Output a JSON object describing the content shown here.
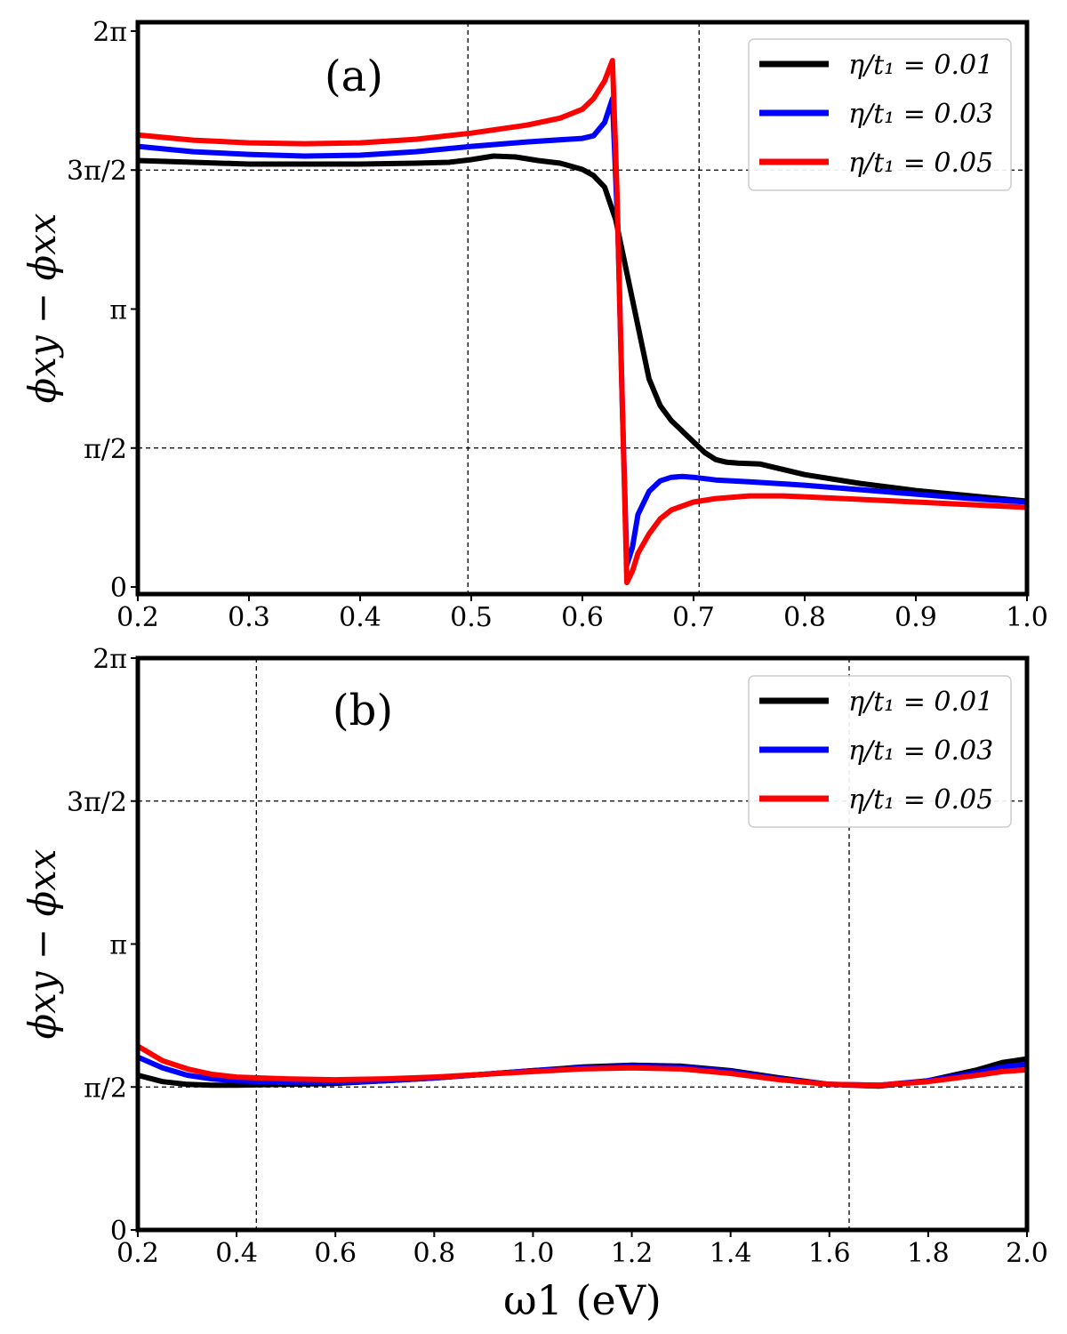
{
  "chart_data": [
    {
      "type": "line",
      "panel_label": "(a)",
      "xlabel": "",
      "ylabel": "ϕxy − ϕxx",
      "xlim": [
        0.2,
        1.0
      ],
      "ylim": [
        -0.08,
        6.3832
      ],
      "xticks": [
        0.2,
        0.3,
        0.4,
        0.5,
        0.6,
        0.7,
        0.8,
        0.9,
        1.0
      ],
      "xtick_labels": [
        "0.2",
        "0.3",
        "0.4",
        "0.5",
        "0.6",
        "0.7",
        "0.8",
        "0.9",
        "1.0"
      ],
      "yticks": [
        0,
        1.5708,
        3.1416,
        4.7124,
        6.2832
      ],
      "ytick_labels": [
        "0",
        "π/2",
        "π",
        "3π/2",
        "2π"
      ],
      "vlines": [
        0.497,
        0.705
      ],
      "hlines": [
        1.5708,
        4.7124
      ],
      "legend_position": "top-right",
      "series": [
        {
          "name": "η/t₁ = 0.01",
          "color": "#000000",
          "points": [
            [
              0.2,
              4.82
            ],
            [
              0.25,
              4.8
            ],
            [
              0.3,
              4.78
            ],
            [
              0.35,
              4.78
            ],
            [
              0.4,
              4.78
            ],
            [
              0.45,
              4.79
            ],
            [
              0.48,
              4.8
            ],
            [
              0.5,
              4.83
            ],
            [
              0.52,
              4.87
            ],
            [
              0.54,
              4.86
            ],
            [
              0.56,
              4.82
            ],
            [
              0.58,
              4.79
            ],
            [
              0.6,
              4.72
            ],
            [
              0.61,
              4.65
            ],
            [
              0.62,
              4.52
            ],
            [
              0.63,
              4.15
            ],
            [
              0.64,
              3.55
            ],
            [
              0.65,
              2.95
            ],
            [
              0.66,
              2.35
            ],
            [
              0.67,
              2.05
            ],
            [
              0.68,
              1.88
            ],
            [
              0.69,
              1.76
            ],
            [
              0.7,
              1.64
            ],
            [
              0.71,
              1.52
            ],
            [
              0.72,
              1.44
            ],
            [
              0.73,
              1.41
            ],
            [
              0.74,
              1.4
            ],
            [
              0.76,
              1.39
            ],
            [
              0.8,
              1.27
            ],
            [
              0.85,
              1.17
            ],
            [
              0.9,
              1.09
            ],
            [
              0.95,
              1.03
            ],
            [
              1.0,
              0.97
            ]
          ]
        },
        {
          "name": "η/t₁ = 0.03",
          "color": "#0000ff",
          "points": [
            [
              0.2,
              4.98
            ],
            [
              0.25,
              4.92
            ],
            [
              0.3,
              4.89
            ],
            [
              0.35,
              4.87
            ],
            [
              0.4,
              4.88
            ],
            [
              0.45,
              4.92
            ],
            [
              0.5,
              4.98
            ],
            [
              0.55,
              5.03
            ],
            [
              0.6,
              5.07
            ],
            [
              0.61,
              5.1
            ],
            [
              0.62,
              5.25
            ],
            [
              0.627,
              5.52
            ],
            [
              0.632,
              4.0
            ],
            [
              0.636,
              2.0
            ],
            [
              0.64,
              0.25
            ],
            [
              0.645,
              0.45
            ],
            [
              0.65,
              0.82
            ],
            [
              0.66,
              1.08
            ],
            [
              0.67,
              1.2
            ],
            [
              0.68,
              1.24
            ],
            [
              0.69,
              1.25
            ],
            [
              0.7,
              1.24
            ],
            [
              0.72,
              1.21
            ],
            [
              0.75,
              1.19
            ],
            [
              0.8,
              1.15
            ],
            [
              0.85,
              1.1
            ],
            [
              0.9,
              1.05
            ],
            [
              0.95,
              1.0
            ],
            [
              1.0,
              0.96
            ]
          ]
        },
        {
          "name": "η/t₁ = 0.05",
          "color": "#ff0000",
          "points": [
            [
              0.2,
              5.11
            ],
            [
              0.25,
              5.05
            ],
            [
              0.3,
              5.02
            ],
            [
              0.35,
              5.01
            ],
            [
              0.4,
              5.02
            ],
            [
              0.45,
              5.06
            ],
            [
              0.5,
              5.13
            ],
            [
              0.55,
              5.22
            ],
            [
              0.58,
              5.3
            ],
            [
              0.6,
              5.4
            ],
            [
              0.61,
              5.52
            ],
            [
              0.62,
              5.72
            ],
            [
              0.627,
              5.95
            ],
            [
              0.631,
              4.5
            ],
            [
              0.635,
              2.5
            ],
            [
              0.64,
              0.05
            ],
            [
              0.645,
              0.18
            ],
            [
              0.65,
              0.38
            ],
            [
              0.66,
              0.6
            ],
            [
              0.67,
              0.77
            ],
            [
              0.68,
              0.87
            ],
            [
              0.7,
              0.96
            ],
            [
              0.72,
              1.0
            ],
            [
              0.75,
              1.03
            ],
            [
              0.78,
              1.03
            ],
            [
              0.8,
              1.02
            ],
            [
              0.85,
              0.99
            ],
            [
              0.9,
              0.96
            ],
            [
              0.95,
              0.93
            ],
            [
              1.0,
              0.9
            ]
          ]
        }
      ]
    },
    {
      "type": "line",
      "panel_label": "(b)",
      "xlabel": "ω1 (eV)",
      "ylabel": "ϕxy − ϕxx",
      "xlim": [
        0.2,
        2.0
      ],
      "ylim": [
        0,
        6.2832
      ],
      "xticks": [
        0.2,
        0.4,
        0.6,
        0.8,
        1.0,
        1.2,
        1.4,
        1.6,
        1.8,
        2.0
      ],
      "xtick_labels": [
        "0.2",
        "0.4",
        "0.6",
        "0.8",
        "1.0",
        "1.2",
        "1.4",
        "1.6",
        "1.8",
        "2.0"
      ],
      "yticks": [
        0,
        1.5708,
        3.1416,
        4.7124,
        6.2832
      ],
      "ytick_labels": [
        "0",
        "π/2",
        "π",
        "3π/2",
        "2π"
      ],
      "vlines": [
        0.44,
        1.64
      ],
      "hlines": [
        1.5708,
        4.7124
      ],
      "legend_position": "top-right",
      "series": [
        {
          "name": "η/t₁ = 0.01",
          "color": "#000000",
          "points": [
            [
              0.2,
              1.7
            ],
            [
              0.25,
              1.63
            ],
            [
              0.3,
              1.6
            ],
            [
              0.35,
              1.59
            ],
            [
              0.4,
              1.59
            ],
            [
              0.5,
              1.6
            ],
            [
              0.6,
              1.61
            ],
            [
              0.7,
              1.64
            ],
            [
              0.8,
              1.67
            ],
            [
              0.9,
              1.71
            ],
            [
              1.0,
              1.75
            ],
            [
              1.1,
              1.79
            ],
            [
              1.2,
              1.81
            ],
            [
              1.3,
              1.8
            ],
            [
              1.4,
              1.75
            ],
            [
              1.5,
              1.67
            ],
            [
              1.6,
              1.6
            ],
            [
              1.7,
              1.58
            ],
            [
              1.8,
              1.64
            ],
            [
              1.9,
              1.76
            ],
            [
              1.95,
              1.84
            ],
            [
              2.0,
              1.88
            ]
          ]
        },
        {
          "name": "η/t₁ = 0.03",
          "color": "#0000ff",
          "points": [
            [
              0.2,
              1.9
            ],
            [
              0.25,
              1.78
            ],
            [
              0.3,
              1.7
            ],
            [
              0.35,
              1.66
            ],
            [
              0.4,
              1.64
            ],
            [
              0.5,
              1.62
            ],
            [
              0.6,
              1.62
            ],
            [
              0.7,
              1.64
            ],
            [
              0.8,
              1.67
            ],
            [
              0.9,
              1.71
            ],
            [
              1.0,
              1.75
            ],
            [
              1.1,
              1.78
            ],
            [
              1.2,
              1.8
            ],
            [
              1.3,
              1.79
            ],
            [
              1.4,
              1.74
            ],
            [
              1.5,
              1.66
            ],
            [
              1.6,
              1.6
            ],
            [
              1.7,
              1.59
            ],
            [
              1.8,
              1.64
            ],
            [
              1.9,
              1.73
            ],
            [
              1.95,
              1.79
            ],
            [
              2.0,
              1.82
            ]
          ]
        },
        {
          "name": "η/t₁ = 0.05",
          "color": "#ff0000",
          "points": [
            [
              0.2,
              2.02
            ],
            [
              0.25,
              1.86
            ],
            [
              0.3,
              1.77
            ],
            [
              0.35,
              1.71
            ],
            [
              0.4,
              1.68
            ],
            [
              0.5,
              1.66
            ],
            [
              0.6,
              1.65
            ],
            [
              0.7,
              1.66
            ],
            [
              0.8,
              1.68
            ],
            [
              0.9,
              1.71
            ],
            [
              1.0,
              1.74
            ],
            [
              1.1,
              1.77
            ],
            [
              1.2,
              1.78
            ],
            [
              1.3,
              1.77
            ],
            [
              1.4,
              1.72
            ],
            [
              1.5,
              1.65
            ],
            [
              1.6,
              1.6
            ],
            [
              1.7,
              1.59
            ],
            [
              1.8,
              1.63
            ],
            [
              1.9,
              1.7
            ],
            [
              1.95,
              1.74
            ],
            [
              2.0,
              1.76
            ]
          ]
        }
      ]
    }
  ]
}
